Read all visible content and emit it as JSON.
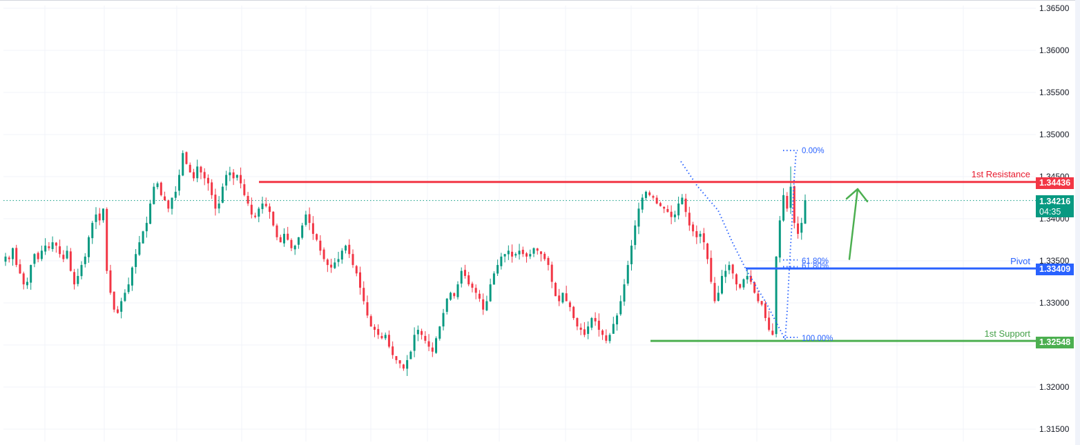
{
  "chart_data": {
    "type": "candlestick",
    "title": "",
    "instrument_hint": "currency pair price chart (1.3xxxx quotes)",
    "xlabel": "",
    "ylabel": "",
    "ylim": [
      1.3145,
      1.3655
    ],
    "grid": true,
    "y_ticks": [
      "1.36500",
      "1.36000",
      "1.35500",
      "1.35000",
      "1.34500",
      "1.34000",
      "1.33500",
      "1.33000",
      "1.32500",
      "1.32000",
      "1.31500"
    ],
    "y_tick_values": [
      1.365,
      1.36,
      1.355,
      1.35,
      1.345,
      1.34,
      1.335,
      1.33,
      1.325,
      1.32,
      1.315
    ],
    "vertical_grid_x": [
      65,
      151,
      256,
      350,
      443,
      537,
      619,
      723,
      819,
      914,
      1011,
      1096,
      1203,
      1299,
      1395
    ],
    "current_price": {
      "value": "1.34216",
      "countdown": "04:35",
      "color": "#089981"
    },
    "levels": [
      {
        "name": "1st Resistance",
        "value": "1.34436",
        "price": 1.34436,
        "color": "#f23645",
        "label_color": "#e8192c",
        "x_start": 375
      },
      {
        "name": "Pivot",
        "value": "1.33409",
        "price": 1.33409,
        "color": "#2962ff",
        "label_color": "#2962ff",
        "x_start": 1080
      },
      {
        "name": "1st Support",
        "value": "1.32548",
        "price": 1.32548,
        "color": "#4caf50",
        "label_color": "#43a047",
        "x_start": 942
      }
    ],
    "fibonacci": [
      {
        "label": "0.00%",
        "price": 1.3481
      },
      {
        "label": "61.80%",
        "price": 1.3351
      },
      {
        "label": "61.80%",
        "price": 1.3343
      },
      {
        "label": "100.00%",
        "price": 1.3259
      }
    ],
    "arrow": {
      "direction": "up",
      "color": "#4caf50",
      "from_price": 1.3352,
      "to_price": 1.3435
    },
    "candles_close_path": [
      1.3355,
      1.3352,
      1.3365,
      1.3345,
      1.3335,
      1.3322,
      1.3325,
      1.3345,
      1.3358,
      1.3352,
      1.3362,
      1.3368,
      1.3365,
      1.3372,
      1.3368,
      1.3358,
      1.3352,
      1.3362,
      1.3338,
      1.3322,
      1.3332,
      1.3345,
      1.3355,
      1.3378,
      1.3395,
      1.3405,
      1.3398,
      1.3412,
      1.3338,
      1.3312,
      1.3292,
      1.3288,
      1.3302,
      1.3312,
      1.3322,
      1.3342,
      1.3358,
      1.3372,
      1.3385,
      1.3395,
      1.3418,
      1.3438,
      1.3442,
      1.3428,
      1.3422,
      1.3412,
      1.3425,
      1.3432,
      1.3452,
      1.3478,
      1.3465,
      1.3455,
      1.3448,
      1.3462,
      1.3455,
      1.3448,
      1.3442,
      1.3428,
      1.3412,
      1.3418,
      1.3438,
      1.3452,
      1.3455,
      1.3448,
      1.3452,
      1.3442,
      1.3428,
      1.3418,
      1.3405,
      1.3402,
      1.3412,
      1.3418,
      1.3415,
      1.3408,
      1.3392,
      1.3378,
      1.3372,
      1.3382,
      1.3375,
      1.3365,
      1.3368,
      1.3378,
      1.3392,
      1.3405,
      1.3395,
      1.3382,
      1.3375,
      1.3362,
      1.3352,
      1.3345,
      1.3342,
      1.3348,
      1.3352,
      1.3362,
      1.3368,
      1.3358,
      1.3345,
      1.3335,
      1.3318,
      1.3302,
      1.3285,
      1.3272,
      1.3268,
      1.3262,
      1.3258,
      1.3262,
      1.3248,
      1.3238,
      1.3232,
      1.3228,
      1.3222,
      1.3232,
      1.3242,
      1.3262,
      1.3268,
      1.3262,
      1.3255,
      1.3248,
      1.3242,
      1.3258,
      1.3272,
      1.3288,
      1.3305,
      1.3312,
      1.3308,
      1.3322,
      1.3338,
      1.3332,
      1.3322,
      1.3318,
      1.3312,
      1.3305,
      1.3292,
      1.3302,
      1.3322,
      1.3335,
      1.3345,
      1.3355,
      1.3358,
      1.3362,
      1.3355,
      1.3358,
      1.3362,
      1.3358,
      1.3355,
      1.3358,
      1.3365,
      1.3362,
      1.3358,
      1.3352,
      1.3345,
      1.3325,
      1.3308,
      1.3302,
      1.3312,
      1.3302,
      1.3295,
      1.3282,
      1.3272,
      1.3268,
      1.3262,
      1.3272,
      1.3282,
      1.3278,
      1.3268,
      1.3262,
      1.3255,
      1.3262,
      1.3275,
      1.3285,
      1.3302,
      1.3322,
      1.3345,
      1.3368,
      1.3392,
      1.3412,
      1.3425,
      1.3432,
      1.3428,
      1.3425,
      1.3418,
      1.3415,
      1.3412,
      1.3408,
      1.3402,
      1.3405,
      1.3418,
      1.3425,
      1.3408,
      1.3392,
      1.3385,
      1.3378,
      1.3382,
      1.3372,
      1.3352,
      1.3325,
      1.3302,
      1.3312,
      1.3332,
      1.3338,
      1.3345,
      1.3335,
      1.3322,
      1.3318,
      1.3328,
      1.3332,
      1.3325,
      1.3312,
      1.3302,
      1.3298,
      1.3282,
      1.3268,
      1.3262,
      1.3355,
      1.3398,
      1.3428,
      1.3412,
      1.3438,
      1.3395,
      1.3382,
      1.3395,
      1.3422
    ]
  },
  "price_axis": {
    "ticks": [
      {
        "label": "1.36500",
        "price": 1.365
      },
      {
        "label": "1.36000",
        "price": 1.36
      },
      {
        "label": "1.35500",
        "price": 1.355
      },
      {
        "label": "1.35000",
        "price": 1.35
      },
      {
        "label": "1.34500",
        "price": 1.345
      },
      {
        "label": "1.34000",
        "price": 1.34
      },
      {
        "label": "1.33500",
        "price": 1.335
      },
      {
        "label": "1.33000",
        "price": 1.33
      },
      {
        "label": "1.32500",
        "price": 1.325
      },
      {
        "label": "1.32000",
        "price": 1.32
      },
      {
        "label": "1.31500",
        "price": 1.315
      }
    ]
  },
  "labels": {
    "resistance_text": "1st Resistance",
    "resistance_tag": "1.34436",
    "pivot_text": "Pivot",
    "pivot_tag": "1.33409",
    "support_text": "1st Support",
    "support_tag": "1.32548",
    "current_price_tag": "1.34216",
    "countdown_tag": "04:35",
    "fib_0": "0.00%",
    "fib_618a": "61.80%",
    "fib_618b": "61.80%",
    "fib_100": "100.00%"
  },
  "colors": {
    "up": "#089981",
    "down": "#f23645",
    "grid": "#f0f3fa",
    "resistance": "#f23645",
    "pivot": "#2962ff",
    "support": "#4caf50",
    "fib": "#2962ff",
    "axis_text": "#131722"
  }
}
